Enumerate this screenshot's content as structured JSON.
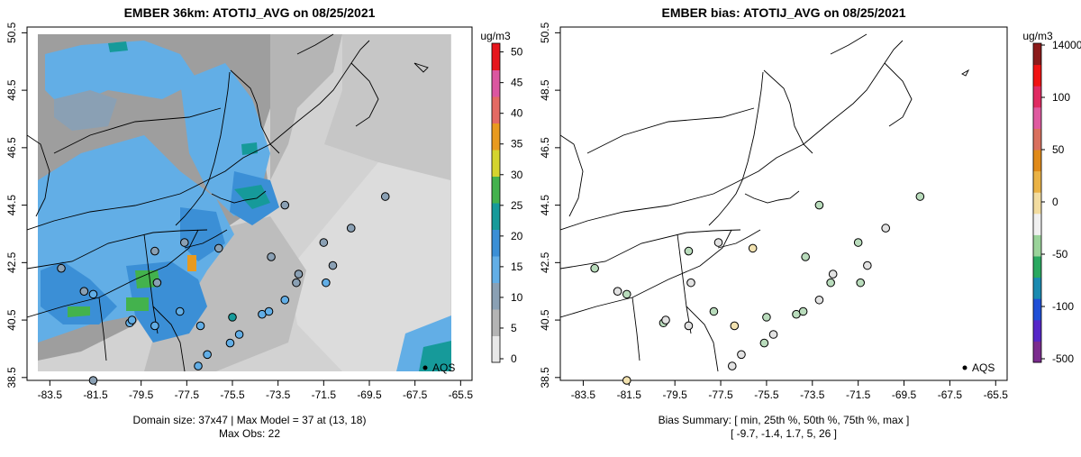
{
  "chart_data": [
    {
      "type": "heatmap",
      "title": "EMBER 36km: ATOTIJ_AVG on 08/25/2021",
      "x_ticks": [
        "-83.5",
        "-81.5",
        "-79.5",
        "-77.5",
        "-75.5",
        "-73.5",
        "-71.5",
        "-69.5",
        "-67.5",
        "-65.5"
      ],
      "y_ticks": [
        "38.5",
        "40.5",
        "42.5",
        "44.5",
        "46.5",
        "48.5",
        "50.5"
      ],
      "xlim": [
        -84.5,
        -65.0
      ],
      "ylim": [
        38.4,
        50.7
      ],
      "colorbar": {
        "unit": "ug/m3",
        "ticks": [
          "0",
          "5",
          "10",
          "15",
          "20",
          "25",
          "30",
          "35",
          "40",
          "45",
          "50"
        ],
        "range": [
          0,
          52
        ],
        "colors": [
          "#e8e8e8",
          "#b4b4b4",
          "#8aa0b4",
          "#62aee6",
          "#3b8fd6",
          "#169a9a",
          "#43b24d",
          "#d4d42e",
          "#e89a1f",
          "#e46a63",
          "#db56a0",
          "#e6151c"
        ]
      },
      "legend": "AQS",
      "footer_lines": [
        "Domain size: 37x47 | Max Model = 37 at (13, 18)",
        "Max Obs: 22"
      ],
      "obs_points": [
        {
          "lon": -83.0,
          "lat": 42.3,
          "value": 11
        },
        {
          "lon": -82.0,
          "lat": 41.5,
          "value": 12
        },
        {
          "lon": -81.6,
          "lat": 41.4,
          "value": 14
        },
        {
          "lon": -80.0,
          "lat": 40.4,
          "value": 13
        },
        {
          "lon": -79.9,
          "lat": 40.5,
          "value": 15
        },
        {
          "lon": -78.8,
          "lat": 41.8,
          "value": 12
        },
        {
          "lon": -77.8,
          "lat": 40.8,
          "value": 13
        },
        {
          "lon": -76.9,
          "lat": 40.3,
          "value": 14
        },
        {
          "lon": -75.2,
          "lat": 40.0,
          "value": 16
        },
        {
          "lon": -74.2,
          "lat": 40.7,
          "value": 15
        },
        {
          "lon": -73.9,
          "lat": 40.8,
          "value": 15
        },
        {
          "lon": -73.2,
          "lat": 41.2,
          "value": 13
        },
        {
          "lon": -72.7,
          "lat": 41.8,
          "value": 12
        },
        {
          "lon": -71.4,
          "lat": 41.8,
          "value": 13
        },
        {
          "lon": -71.1,
          "lat": 42.4,
          "value": 12
        },
        {
          "lon": -72.6,
          "lat": 42.1,
          "value": 11
        },
        {
          "lon": -73.8,
          "lat": 42.7,
          "value": 12
        },
        {
          "lon": -76.1,
          "lat": 43.0,
          "value": 11
        },
        {
          "lon": -77.6,
          "lat": 43.2,
          "value": 12
        },
        {
          "lon": -78.9,
          "lat": 42.9,
          "value": 12
        },
        {
          "lon": -73.2,
          "lat": 44.5,
          "value": 10
        },
        {
          "lon": -70.3,
          "lat": 43.7,
          "value": 11
        },
        {
          "lon": -68.8,
          "lat": 44.8,
          "value": 9
        },
        {
          "lon": -71.5,
          "lat": 43.2,
          "value": 10
        },
        {
          "lon": -77.0,
          "lat": 38.9,
          "value": 15
        },
        {
          "lon": -76.6,
          "lat": 39.3,
          "value": 16
        },
        {
          "lon": -75.6,
          "lat": 39.7,
          "value": 15
        },
        {
          "lon": -81.6,
          "lat": 38.4,
          "value": 12
        },
        {
          "lon": -78.9,
          "lat": 40.3,
          "value": 13
        },
        {
          "lon": -75.5,
          "lat": 40.6,
          "value": 22
        }
      ]
    },
    {
      "type": "scatter",
      "title": "EMBER bias: ATOTIJ_AVG on 08/25/2021",
      "x_ticks": [
        "-83.5",
        "-81.5",
        "-79.5",
        "-77.5",
        "-75.5",
        "-73.5",
        "-71.5",
        "-69.5",
        "-67.5",
        "-65.5"
      ],
      "y_ticks": [
        "38.5",
        "40.5",
        "42.5",
        "44.5",
        "46.5",
        "48.5",
        "50.5"
      ],
      "xlim": [
        -84.5,
        -65.0
      ],
      "ylim": [
        38.4,
        50.7
      ],
      "colorbar": {
        "unit": "ug/m3",
        "ticks": [
          "14000",
          "100",
          "50",
          "0",
          "-50",
          "-100",
          "-500"
        ],
        "range": [
          -500,
          14000
        ],
        "colors": [
          "#7b2c8e",
          "#5526c8",
          "#1f4fd6",
          "#1a8ab0",
          "#2aa860",
          "#9ad39a",
          "#f0f0f0",
          "#f2dca0",
          "#eab245",
          "#e08a19",
          "#d9705e",
          "#df5aa0",
          "#e02a62",
          "#f01212",
          "#8b1a1a"
        ]
      },
      "legend": "AQS",
      "footer_lines": [
        "Bias Summary: [ min, 25th %, 50th %, 75th %, max ]",
        "[ -9.7,  -1.4,  1.7,  5,  26 ]"
      ],
      "bias_summary": {
        "min": -9.7,
        "p25": -1.4,
        "p50": 1.7,
        "p75": 5,
        "max": 26
      }
    }
  ]
}
